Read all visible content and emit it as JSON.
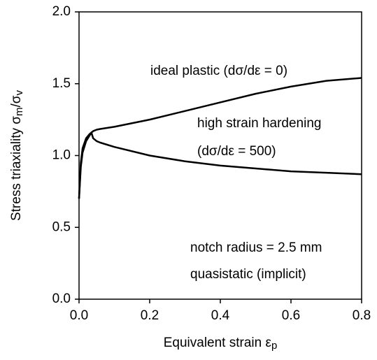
{
  "chart_data": {
    "type": "line",
    "xlabel_parts": [
      "Equivalent strain ε",
      "p"
    ],
    "ylabel_parts": [
      "Stress triaxiality  σ",
      "m",
      "/σ",
      "v"
    ],
    "annotations": [
      "ideal plastic (dσ/dε = 0)",
      "high strain hardening",
      "(dσ/dε = 500)",
      "notch radius = 2.5 mm",
      "quasistatic (implicit)"
    ],
    "x": [
      0,
      0.005,
      0.01,
      0.02,
      0.03,
      0.035,
      0.04,
      0.05,
      0.06,
      0.1,
      0.2,
      0.3,
      0.4,
      0.5,
      0.6,
      0.7,
      0.8
    ],
    "series": [
      {
        "color": "#000000",
        "values": [
          0.7,
          0.95,
          1.05,
          1.12,
          1.15,
          1.16,
          1.17,
          1.18,
          1.185,
          1.2,
          1.25,
          1.31,
          1.37,
          1.43,
          1.48,
          1.52,
          1.54
        ]
      },
      {
        "color": "#000000",
        "values": [
          0.7,
          0.92,
          1.02,
          1.1,
          1.14,
          1.16,
          1.12,
          1.1,
          1.09,
          1.06,
          1.0,
          0.96,
          0.93,
          0.91,
          0.89,
          0.88,
          0.87
        ]
      }
    ],
    "xlim": [
      0,
      0.8
    ],
    "xticks": [
      {
        "value": 0,
        "label": "0.0"
      },
      0.2,
      0.4,
      0.6,
      0.8
    ],
    "ylim": [
      0,
      2
    ],
    "yticks": [
      {
        "value": 0,
        "label": "0.0"
      },
      {
        "value": 0.5,
        "label": "0.5"
      },
      {
        "value": 1,
        "label": "1.0"
      },
      {
        "value": 1.5,
        "label": "1.5"
      },
      {
        "value": 2,
        "label": "2.0"
      }
    ],
    "grid": false
  }
}
